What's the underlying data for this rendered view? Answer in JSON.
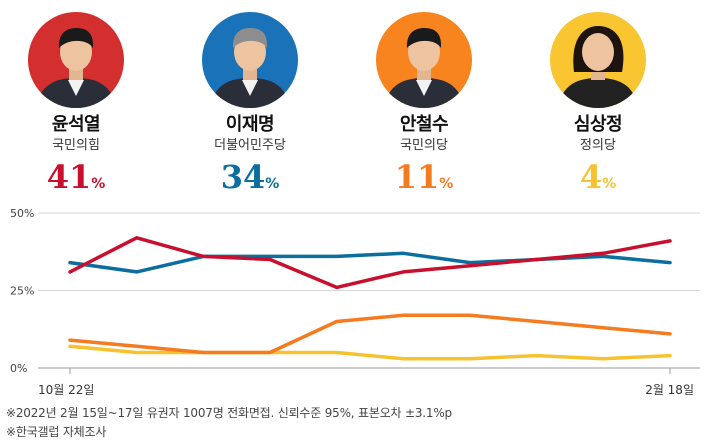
{
  "candidates": [
    {
      "name": "윤석열",
      "party": "국민의힘",
      "value": "41",
      "unit": "%",
      "color": "#c8102e",
      "avatar_bg": "#d32f2f",
      "icon": "candidate-portrait-icon"
    },
    {
      "name": "이재명",
      "party": "더불어민주당",
      "value": "34",
      "unit": "%",
      "color": "#0b6e9e",
      "avatar_bg": "#1a73b8",
      "icon": "candidate-portrait-icon"
    },
    {
      "name": "안철수",
      "party": "국민의당",
      "value": "11",
      "unit": "%",
      "color": "#f47b20",
      "avatar_bg": "#f7841f",
      "icon": "candidate-portrait-icon"
    },
    {
      "name": "심상정",
      "party": "정의당",
      "value": "4",
      "unit": "%",
      "color": "#f7c230",
      "avatar_bg": "#f9c531",
      "icon": "candidate-portrait-icon"
    }
  ],
  "chart_data": {
    "type": "line",
    "x_labels": [
      "10월 22일",
      "2월 18일"
    ],
    "yticks": [
      "0%",
      "25%",
      "50%"
    ],
    "ylim": [
      0,
      50
    ],
    "grid": true,
    "series": [
      {
        "name": "윤석열",
        "color": "#c8102e",
        "values": [
          31,
          42,
          36,
          35,
          26,
          31,
          33,
          35,
          37,
          41
        ]
      },
      {
        "name": "이재명",
        "color": "#0b6e9e",
        "values": [
          34,
          31,
          36,
          36,
          36,
          37,
          34,
          35,
          36,
          34
        ]
      },
      {
        "name": "안철수",
        "color": "#f47b20",
        "values": [
          9,
          7,
          5,
          5,
          15,
          17,
          17,
          15,
          13,
          11
        ]
      },
      {
        "name": "심상정",
        "color": "#f7c230",
        "values": [
          7,
          5,
          5,
          5,
          5,
          3,
          3,
          4,
          3,
          4
        ]
      }
    ]
  },
  "notes": {
    "survey": "※2022년 2월 15일~17일 유권자 1007명 전화면접. 신뢰수준 95%, 표본오차 ±3.1%p",
    "source": "※한국갤럽 자체조사"
  }
}
